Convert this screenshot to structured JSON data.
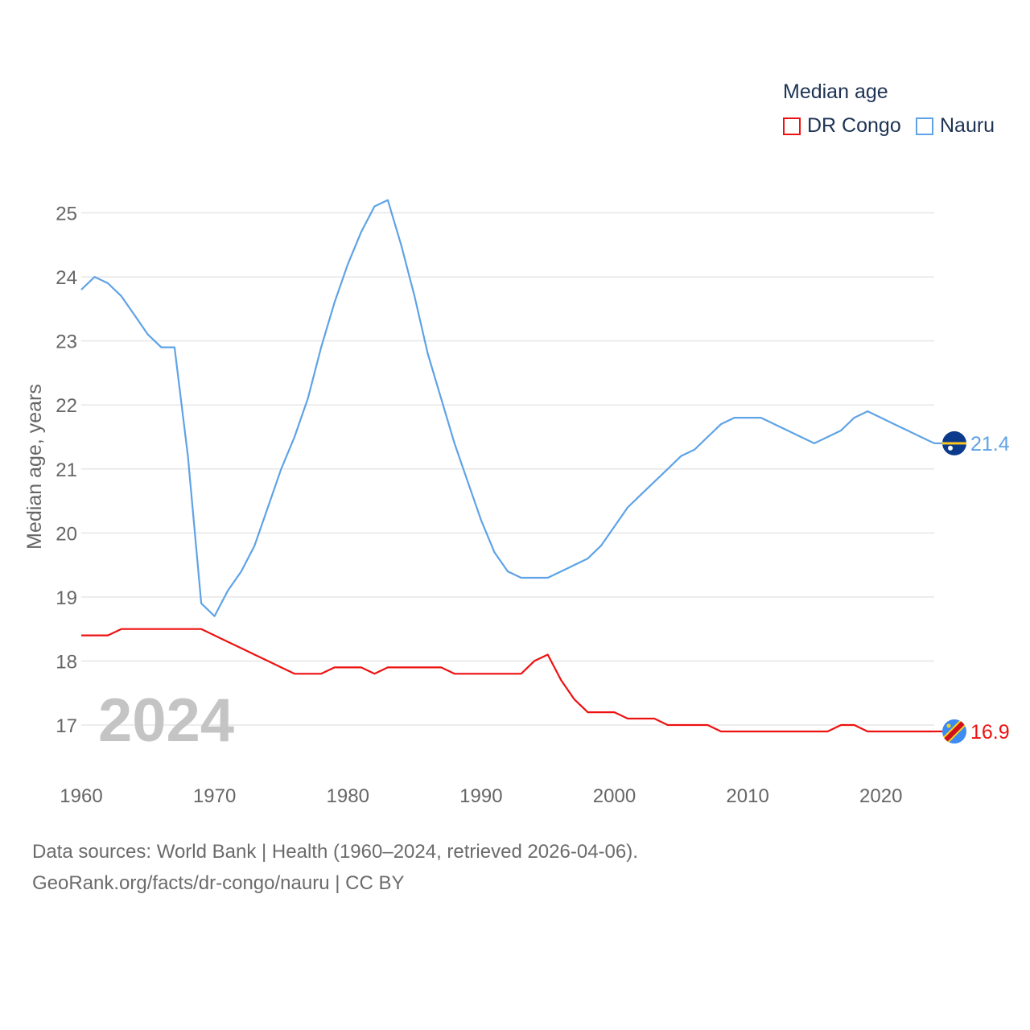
{
  "legend": {
    "title": "Median age",
    "items": [
      {
        "label": "DR Congo",
        "color": "#ee1111"
      },
      {
        "label": "Nauru",
        "color": "#5ea3e6"
      }
    ]
  },
  "year_watermark": "2024",
  "footer": {
    "line1": "Data sources: World Bank | Health (1960–2024, retrieved 2026-04-06).",
    "line2": "GeoRank.org/facts/dr-congo/nauru | CC BY"
  },
  "chart_data": {
    "type": "line",
    "title": "Median age",
    "xlabel": "",
    "ylabel": "Median age, years",
    "xlim": [
      1960,
      2024
    ],
    "ylim": [
      16.4,
      25.5
    ],
    "x_ticks": [
      1960,
      1970,
      1980,
      1990,
      2000,
      2010,
      2020
    ],
    "y_ticks": [
      17,
      18,
      19,
      20,
      21,
      22,
      23,
      24,
      25
    ],
    "grid": true,
    "legend_position": "top-right",
    "x": [
      1960,
      1961,
      1962,
      1963,
      1964,
      1965,
      1966,
      1967,
      1968,
      1969,
      1970,
      1971,
      1972,
      1973,
      1974,
      1975,
      1976,
      1977,
      1978,
      1979,
      1980,
      1981,
      1982,
      1983,
      1984,
      1985,
      1986,
      1987,
      1988,
      1989,
      1990,
      1991,
      1992,
      1993,
      1994,
      1995,
      1996,
      1997,
      1998,
      1999,
      2000,
      2001,
      2002,
      2003,
      2004,
      2005,
      2006,
      2007,
      2008,
      2009,
      2010,
      2011,
      2012,
      2013,
      2014,
      2015,
      2016,
      2017,
      2018,
      2019,
      2020,
      2021,
      2022,
      2023,
      2024
    ],
    "series": [
      {
        "name": "Nauru",
        "color": "#5ea3e6",
        "end_label": "21.4",
        "values": [
          23.8,
          24.0,
          23.9,
          23.7,
          23.4,
          23.1,
          22.9,
          22.9,
          21.2,
          18.9,
          18.7,
          19.1,
          19.4,
          19.8,
          20.4,
          21.0,
          21.5,
          22.1,
          22.9,
          23.6,
          24.2,
          24.7,
          25.1,
          25.2,
          24.5,
          23.7,
          22.8,
          22.1,
          21.4,
          20.8,
          20.2,
          19.7,
          19.4,
          19.3,
          19.3,
          19.3,
          19.4,
          19.5,
          19.6,
          19.8,
          20.1,
          20.4,
          20.6,
          20.8,
          21.0,
          21.2,
          21.3,
          21.5,
          21.7,
          21.8,
          21.8,
          21.8,
          21.7,
          21.6,
          21.5,
          21.4,
          21.5,
          21.6,
          21.8,
          21.9,
          21.8,
          21.7,
          21.6,
          21.5,
          21.4
        ]
      },
      {
        "name": "DR Congo",
        "color": "#ee1111",
        "end_label": "16.9",
        "values": [
          18.4,
          18.4,
          18.4,
          18.5,
          18.5,
          18.5,
          18.5,
          18.5,
          18.5,
          18.5,
          18.4,
          18.3,
          18.2,
          18.1,
          18.0,
          17.9,
          17.8,
          17.8,
          17.8,
          17.9,
          17.9,
          17.9,
          17.8,
          17.9,
          17.9,
          17.9,
          17.9,
          17.9,
          17.8,
          17.8,
          17.8,
          17.8,
          17.8,
          17.8,
          18.0,
          18.1,
          17.7,
          17.4,
          17.2,
          17.2,
          17.2,
          17.1,
          17.1,
          17.1,
          17.0,
          17.0,
          17.0,
          17.0,
          16.9,
          16.9,
          16.9,
          16.9,
          16.9,
          16.9,
          16.9,
          16.9,
          16.9,
          17.0,
          17.0,
          16.9,
          16.9,
          16.9,
          16.9,
          16.9,
          16.9
        ]
      }
    ]
  }
}
